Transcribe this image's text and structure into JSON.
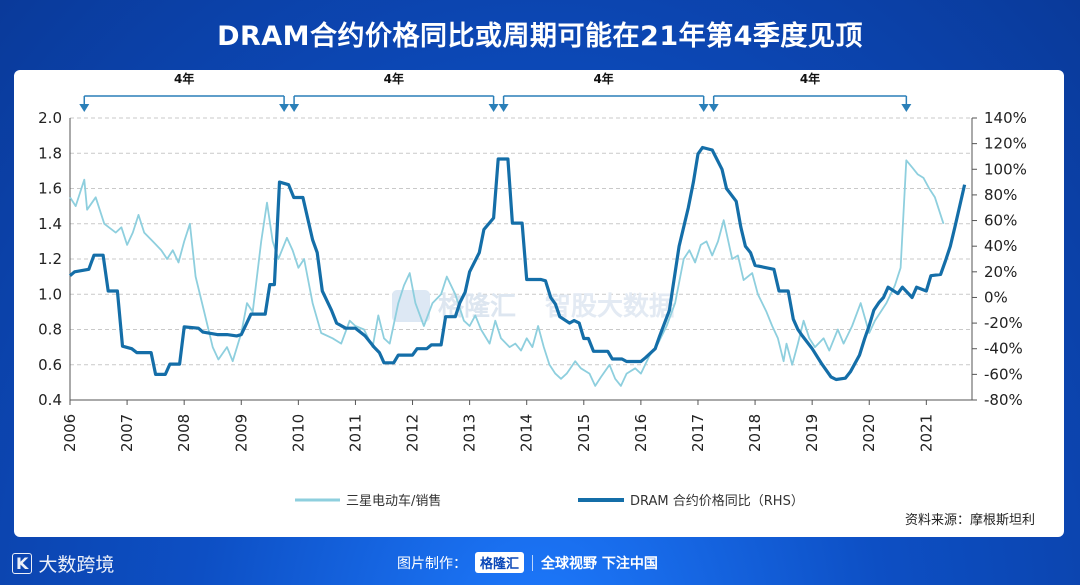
{
  "title": "DRAM合约价格同比或周期可能在21年第4季度见顶",
  "source": "资料来源：摩根斯坦利",
  "footer": {
    "brand_left": "大数跨境",
    "made_by": "图片制作：",
    "logo": "格隆汇",
    "slogan": "全球视野 下注中国"
  },
  "watermark": {
    "left": "格隆汇",
    "right": "智股大数据"
  },
  "cycle_label": "4年",
  "chart_data": {
    "type": "line",
    "x_ticks": [
      "2006",
      "2007",
      "2008",
      "2009",
      "2010",
      "2011",
      "2012",
      "2013",
      "2014",
      "2015",
      "2016",
      "2017",
      "2018",
      "2019",
      "2020",
      "2021"
    ],
    "ylim_left": [
      0.4,
      2.0
    ],
    "left_ticks": [
      "2.0",
      "1.8",
      "1.6",
      "1.4",
      "1.2",
      "1.0",
      "0.8",
      "0.6",
      "0.4"
    ],
    "ylim_right": [
      -80,
      140
    ],
    "right_ticks": [
      "140%",
      "120%",
      "100%",
      "80%",
      "60%",
      "40%",
      "20%",
      "0%",
      "-20%",
      "-40%",
      "-60%",
      "-80%"
    ],
    "cycle_peaks": [
      2006.25,
      2009.75,
      2013.42,
      2017.1,
      2020.65
    ],
    "series": [
      {
        "name": "三星电动车/销售",
        "axis": "left",
        "color": "#8ecfde",
        "points": [
          [
            2006.0,
            1.55
          ],
          [
            2006.1,
            1.5
          ],
          [
            2006.2,
            1.6
          ],
          [
            2006.25,
            1.65
          ],
          [
            2006.3,
            1.48
          ],
          [
            2006.45,
            1.55
          ],
          [
            2006.6,
            1.4
          ],
          [
            2006.8,
            1.35
          ],
          [
            2006.9,
            1.38
          ],
          [
            2007.0,
            1.28
          ],
          [
            2007.1,
            1.35
          ],
          [
            2007.2,
            1.45
          ],
          [
            2007.3,
            1.35
          ],
          [
            2007.45,
            1.3
          ],
          [
            2007.6,
            1.25
          ],
          [
            2007.7,
            1.2
          ],
          [
            2007.8,
            1.25
          ],
          [
            2007.9,
            1.18
          ],
          [
            2008.0,
            1.3
          ],
          [
            2008.1,
            1.4
          ],
          [
            2008.2,
            1.1
          ],
          [
            2008.35,
            0.9
          ],
          [
            2008.5,
            0.7
          ],
          [
            2008.6,
            0.63
          ],
          [
            2008.75,
            0.7
          ],
          [
            2008.85,
            0.62
          ],
          [
            2009.0,
            0.78
          ],
          [
            2009.1,
            0.95
          ],
          [
            2009.2,
            0.9
          ],
          [
            2009.35,
            1.3
          ],
          [
            2009.45,
            1.52
          ],
          [
            2009.55,
            1.3
          ],
          [
            2009.65,
            1.2
          ],
          [
            2009.8,
            1.32
          ],
          [
            2009.9,
            1.25
          ],
          [
            2010.0,
            1.15
          ],
          [
            2010.1,
            1.2
          ],
          [
            2010.25,
            0.95
          ],
          [
            2010.4,
            0.78
          ],
          [
            2010.6,
            0.75
          ],
          [
            2010.75,
            0.72
          ],
          [
            2010.9,
            0.85
          ],
          [
            2011.0,
            0.82
          ],
          [
            2011.15,
            0.8
          ],
          [
            2011.3,
            0.7
          ],
          [
            2011.4,
            0.88
          ],
          [
            2011.5,
            0.75
          ],
          [
            2011.6,
            0.72
          ],
          [
            2011.75,
            0.95
          ],
          [
            2011.85,
            1.05
          ],
          [
            2011.95,
            1.12
          ],
          [
            2012.05,
            0.95
          ],
          [
            2012.2,
            0.82
          ],
          [
            2012.35,
            0.95
          ],
          [
            2012.5,
            1.0
          ],
          [
            2012.6,
            1.1
          ],
          [
            2012.75,
            1.0
          ],
          [
            2012.9,
            0.85
          ],
          [
            2013.0,
            0.82
          ],
          [
            2013.1,
            0.88
          ],
          [
            2013.2,
            0.8
          ],
          [
            2013.35,
            0.72
          ],
          [
            2013.45,
            0.85
          ],
          [
            2013.55,
            0.75
          ],
          [
            2013.7,
            0.7
          ],
          [
            2013.8,
            0.72
          ],
          [
            2013.9,
            0.68
          ],
          [
            2014.0,
            0.75
          ],
          [
            2014.1,
            0.7
          ],
          [
            2014.2,
            0.82
          ],
          [
            2014.3,
            0.7
          ],
          [
            2014.4,
            0.6
          ],
          [
            2014.5,
            0.55
          ],
          [
            2014.6,
            0.52
          ],
          [
            2014.7,
            0.55
          ],
          [
            2014.85,
            0.62
          ],
          [
            2014.95,
            0.58
          ],
          [
            2015.1,
            0.55
          ],
          [
            2015.2,
            0.48
          ],
          [
            2015.3,
            0.53
          ],
          [
            2015.45,
            0.6
          ],
          [
            2015.55,
            0.52
          ],
          [
            2015.65,
            0.48
          ],
          [
            2015.75,
            0.55
          ],
          [
            2015.9,
            0.58
          ],
          [
            2016.0,
            0.55
          ],
          [
            2016.15,
            0.65
          ],
          [
            2016.3,
            0.72
          ],
          [
            2016.45,
            0.82
          ],
          [
            2016.6,
            0.95
          ],
          [
            2016.75,
            1.2
          ],
          [
            2016.85,
            1.25
          ],
          [
            2016.95,
            1.18
          ],
          [
            2017.05,
            1.28
          ],
          [
            2017.15,
            1.3
          ],
          [
            2017.25,
            1.22
          ],
          [
            2017.35,
            1.3
          ],
          [
            2017.45,
            1.42
          ],
          [
            2017.6,
            1.2
          ],
          [
            2017.7,
            1.22
          ],
          [
            2017.8,
            1.08
          ],
          [
            2017.95,
            1.12
          ],
          [
            2018.05,
            1.0
          ],
          [
            2018.2,
            0.9
          ],
          [
            2018.3,
            0.82
          ],
          [
            2018.4,
            0.75
          ],
          [
            2018.5,
            0.62
          ],
          [
            2018.55,
            0.72
          ],
          [
            2018.65,
            0.6
          ],
          [
            2018.75,
            0.72
          ],
          [
            2018.85,
            0.85
          ],
          [
            2018.95,
            0.75
          ],
          [
            2019.05,
            0.7
          ],
          [
            2019.2,
            0.75
          ],
          [
            2019.3,
            0.68
          ],
          [
            2019.45,
            0.8
          ],
          [
            2019.55,
            0.72
          ],
          [
            2019.7,
            0.82
          ],
          [
            2019.85,
            0.95
          ],
          [
            2020.0,
            0.78
          ],
          [
            2020.1,
            0.85
          ],
          [
            2020.2,
            0.9
          ],
          [
            2020.3,
            0.95
          ],
          [
            2020.45,
            1.05
          ],
          [
            2020.55,
            1.15
          ],
          [
            2020.65,
            1.76
          ],
          [
            2020.75,
            1.72
          ],
          [
            2020.85,
            1.68
          ],
          [
            2020.95,
            1.66
          ],
          [
            2021.05,
            1.6
          ],
          [
            2021.15,
            1.55
          ],
          [
            2021.3,
            1.4
          ]
        ]
      },
      {
        "name": "DRAM 合约价格同比（RHS）",
        "axis": "right",
        "color": "#146ea8",
        "points": [
          [
            2006.0,
            17
          ],
          [
            2006.08,
            20
          ],
          [
            2006.33,
            22
          ],
          [
            2006.42,
            33
          ],
          [
            2006.58,
            33
          ],
          [
            2006.67,
            5
          ],
          [
            2006.83,
            5
          ],
          [
            2006.92,
            -38
          ],
          [
            2007.08,
            -40
          ],
          [
            2007.17,
            -43
          ],
          [
            2007.42,
            -43
          ],
          [
            2007.5,
            -60
          ],
          [
            2007.67,
            -60
          ],
          [
            2007.75,
            -52
          ],
          [
            2007.92,
            -52
          ],
          [
            2008.0,
            -23
          ],
          [
            2008.25,
            -24
          ],
          [
            2008.33,
            -27
          ],
          [
            2008.58,
            -29
          ],
          [
            2008.75,
            -29
          ],
          [
            2008.92,
            -30
          ],
          [
            2009.0,
            -29
          ],
          [
            2009.17,
            -13
          ],
          [
            2009.42,
            -13
          ],
          [
            2009.5,
            10
          ],
          [
            2009.58,
            10
          ],
          [
            2009.67,
            90
          ],
          [
            2009.83,
            88
          ],
          [
            2009.92,
            78
          ],
          [
            2010.08,
            78
          ],
          [
            2010.25,
            45
          ],
          [
            2010.33,
            35
          ],
          [
            2010.42,
            5
          ],
          [
            2010.58,
            -10
          ],
          [
            2010.67,
            -20
          ],
          [
            2010.83,
            -24
          ],
          [
            2011.0,
            -24
          ],
          [
            2011.17,
            -30
          ],
          [
            2011.33,
            -39
          ],
          [
            2011.42,
            -43
          ],
          [
            2011.5,
            -51
          ],
          [
            2011.67,
            -51
          ],
          [
            2011.75,
            -45
          ],
          [
            2012.0,
            -45
          ],
          [
            2012.08,
            -40
          ],
          [
            2012.25,
            -40
          ],
          [
            2012.33,
            -37
          ],
          [
            2012.5,
            -37
          ],
          [
            2012.58,
            -15
          ],
          [
            2012.75,
            -15
          ],
          [
            2012.83,
            -4
          ],
          [
            2012.92,
            4
          ],
          [
            2013.0,
            20
          ],
          [
            2013.17,
            35
          ],
          [
            2013.25,
            53
          ],
          [
            2013.42,
            62
          ],
          [
            2013.5,
            108
          ],
          [
            2013.67,
            108
          ],
          [
            2013.75,
            58
          ],
          [
            2013.92,
            58
          ],
          [
            2014.0,
            14
          ],
          [
            2014.25,
            14
          ],
          [
            2014.33,
            13
          ],
          [
            2014.42,
            0
          ],
          [
            2014.5,
            -5
          ],
          [
            2014.58,
            -15
          ],
          [
            2014.75,
            -20
          ],
          [
            2014.83,
            -18
          ],
          [
            2014.92,
            -20
          ],
          [
            2015.0,
            -32
          ],
          [
            2015.08,
            -32
          ],
          [
            2015.17,
            -42
          ],
          [
            2015.42,
            -42
          ],
          [
            2015.5,
            -48
          ],
          [
            2015.67,
            -48
          ],
          [
            2015.75,
            -50
          ],
          [
            2016.0,
            -50
          ],
          [
            2016.08,
            -47
          ],
          [
            2016.25,
            -40
          ],
          [
            2016.33,
            -30
          ],
          [
            2016.5,
            -10
          ],
          [
            2016.67,
            40
          ],
          [
            2016.83,
            70
          ],
          [
            2016.92,
            90
          ],
          [
            2017.0,
            112
          ],
          [
            2017.08,
            117
          ],
          [
            2017.25,
            115
          ],
          [
            2017.42,
            100
          ],
          [
            2017.5,
            85
          ],
          [
            2017.67,
            75
          ],
          [
            2017.75,
            55
          ],
          [
            2017.83,
            40
          ],
          [
            2017.92,
            35
          ],
          [
            2018.0,
            25
          ],
          [
            2018.33,
            22
          ],
          [
            2018.42,
            5
          ],
          [
            2018.58,
            5
          ],
          [
            2018.67,
            -17
          ],
          [
            2018.75,
            -25
          ],
          [
            2018.83,
            -30
          ],
          [
            2019.0,
            -40
          ],
          [
            2019.17,
            -52
          ],
          [
            2019.33,
            -62
          ],
          [
            2019.42,
            -64
          ],
          [
            2019.58,
            -63
          ],
          [
            2019.67,
            -58
          ],
          [
            2019.83,
            -45
          ],
          [
            2019.92,
            -32
          ],
          [
            2020.0,
            -22
          ],
          [
            2020.08,
            -10
          ],
          [
            2020.17,
            -4
          ],
          [
            2020.25,
            0
          ],
          [
            2020.33,
            8
          ],
          [
            2020.5,
            3
          ],
          [
            2020.58,
            8
          ],
          [
            2020.75,
            0
          ],
          [
            2020.83,
            8
          ],
          [
            2021.0,
            5
          ],
          [
            2021.08,
            17
          ],
          [
            2021.25,
            18
          ],
          [
            2021.33,
            28
          ],
          [
            2021.42,
            40
          ],
          [
            2021.5,
            55
          ],
          [
            2021.67,
            88
          ]
        ]
      }
    ]
  }
}
